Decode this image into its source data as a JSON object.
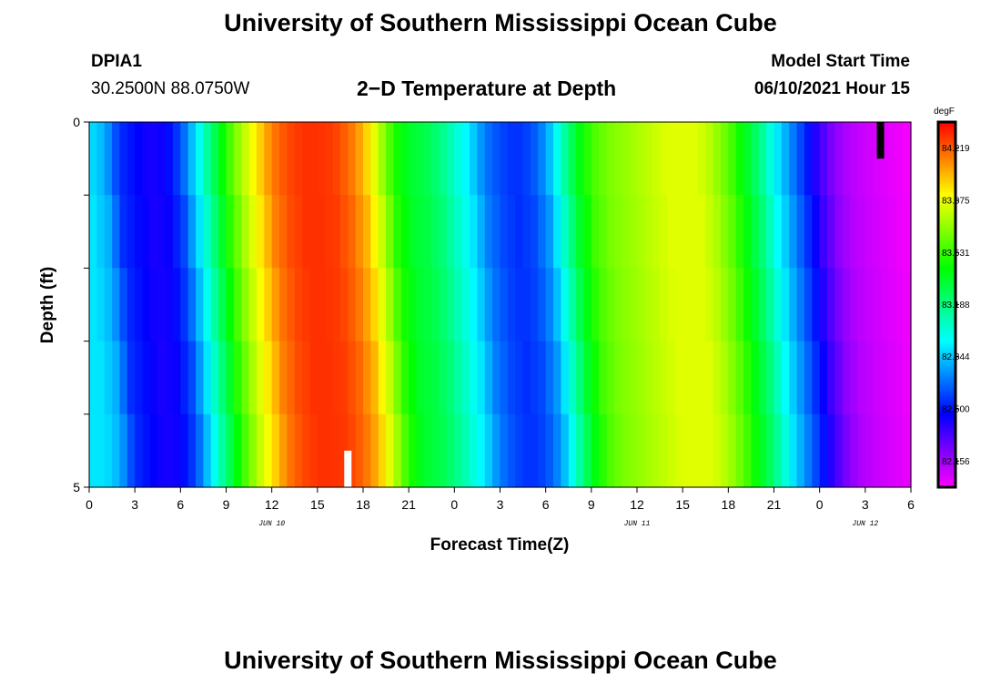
{
  "header": {
    "title": "University of Southern Mississippi Ocean Cube",
    "station": "DPIA1",
    "coordinates": "30.2500N  88.0750W",
    "subtitle": "2−D Temperature at Depth",
    "model_start_label": "Model Start Time",
    "model_start_value": "06/10/2021 Hour 15"
  },
  "footer": {
    "title": "University of Southern Mississippi Ocean Cube"
  },
  "chart_data": {
    "type": "heatmap",
    "xlabel": "Forecast Time(Z)",
    "ylabel": "Depth (ft)",
    "x_hours_range": [
      0,
      54
    ],
    "ylim": [
      0,
      5
    ],
    "y_ticks": [
      "0",
      "5"
    ],
    "x_tick_labels": [
      "0",
      "3",
      "6",
      "9",
      "12",
      "15",
      "18",
      "21",
      "0",
      "3",
      "6",
      "9",
      "12",
      "15",
      "18",
      "21",
      "0",
      "3",
      "6"
    ],
    "day_labels": [
      {
        "text": "JUN 10",
        "hour": 12
      },
      {
        "text": "JUN 11",
        "hour": 36
      },
      {
        "text": "JUN 12",
        "hour": 51
      }
    ],
    "colorbar": {
      "unit": "degF",
      "min": 81.984,
      "max": 84.391,
      "tick_values": [
        "84.219",
        "83.875",
        "83.531",
        "83.188",
        "82.844",
        "82.500",
        "82.156"
      ]
    },
    "depth_layers": 5,
    "surface_profile_degF": [
      [
        0,
        82.9
      ],
      [
        1,
        82.8
      ],
      [
        2,
        82.55
      ],
      [
        3,
        82.48
      ],
      [
        4,
        82.42
      ],
      [
        5,
        82.45
      ],
      [
        6,
        82.6
      ],
      [
        7,
        82.9
      ],
      [
        8,
        83.2
      ],
      [
        9,
        83.5
      ],
      [
        10,
        83.75
      ],
      [
        11,
        83.95
      ],
      [
        12,
        84.15
      ],
      [
        13,
        84.25
      ],
      [
        14,
        84.3
      ],
      [
        15,
        84.3
      ],
      [
        16,
        84.28
      ],
      [
        17,
        84.2
      ],
      [
        18,
        84.05
      ],
      [
        19,
        83.8
      ],
      [
        20,
        83.5
      ],
      [
        21,
        83.35
      ],
      [
        22,
        83.3
      ],
      [
        23,
        83.2
      ],
      [
        24,
        83.05
      ],
      [
        25,
        82.9
      ],
      [
        26,
        82.7
      ],
      [
        27,
        82.6
      ],
      [
        28,
        82.55
      ],
      [
        29,
        82.6
      ],
      [
        30,
        82.75
      ],
      [
        31,
        83.05
      ],
      [
        32,
        83.35
      ],
      [
        33,
        83.55
      ],
      [
        34,
        83.65
      ],
      [
        35,
        83.7
      ],
      [
        36,
        83.75
      ],
      [
        37,
        83.8
      ],
      [
        38,
        83.85
      ],
      [
        39,
        83.85
      ],
      [
        40,
        83.85
      ],
      [
        41,
        83.75
      ],
      [
        42,
        83.6
      ],
      [
        43,
        83.4
      ],
      [
        44,
        83.2
      ],
      [
        45,
        82.95
      ],
      [
        46,
        82.75
      ],
      [
        47,
        82.55
      ],
      [
        48,
        82.35
      ],
      [
        49,
        82.2
      ],
      [
        50,
        82.12
      ],
      [
        51,
        82.08
      ],
      [
        52,
        82.05
      ],
      [
        53,
        82.02
      ],
      [
        54,
        82.0
      ]
    ],
    "markers": [
      {
        "type": "current-time",
        "color": "#ffffff",
        "hour": 17,
        "depth_from": 4.5,
        "depth_to": 5
      },
      {
        "type": "end-marker",
        "color": "#000000",
        "hour": 52,
        "depth_from": 0,
        "depth_to": 0.5
      }
    ]
  }
}
